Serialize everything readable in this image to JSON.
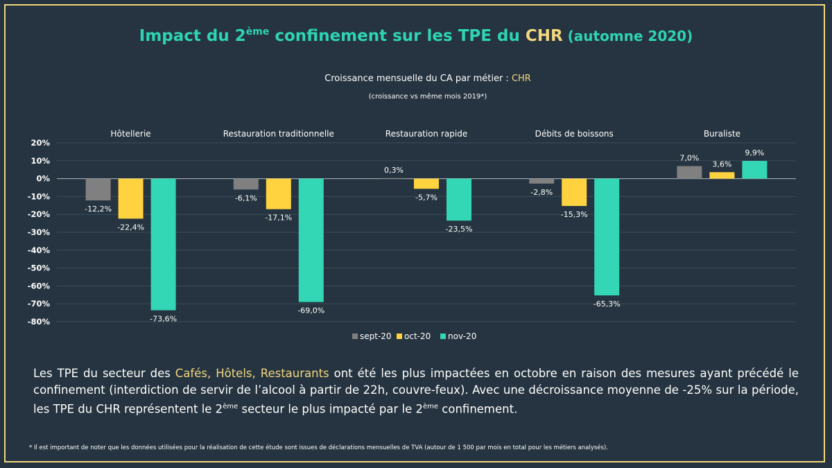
{
  "header": {
    "title_part1": "Impact du 2",
    "title_sup": "ème",
    "title_part2": " confinement sur les TPE du ",
    "title_highlight": "CHR",
    "title_part3": " (automne 2020)"
  },
  "colors": {
    "background": "#253440",
    "accent_teal": "#2fd4b4",
    "accent_yellow": "#f2d77e",
    "sept-20": "#808080",
    "oct-20": "#ffd23f",
    "nov-20": "#33d6b5"
  },
  "chart_data": {
    "type": "bar",
    "title": "Croissance mensuelle du CA par métier : CHR",
    "subtitle": "(croissance vs même mois 2019*)",
    "categories": [
      "Hôtellerie",
      "Restauration traditionnelle",
      "Restauration rapide",
      "Débits de boissons",
      "Buraliste"
    ],
    "series": [
      {
        "name": "sept-20",
        "values": [
          -12.2,
          -6.1,
          0.3,
          -2.8,
          7.0
        ],
        "labels": [
          "-12,2%",
          "-6,1%",
          "0,3%",
          "-2,8%",
          "7,0%"
        ]
      },
      {
        "name": "oct-20",
        "values": [
          -22.4,
          -17.1,
          -5.7,
          -15.3,
          3.6
        ],
        "labels": [
          "-22,4%",
          "-17,1%",
          "-5,7%",
          "-15,3%",
          "3,6%"
        ]
      },
      {
        "name": "nov-20",
        "values": [
          -73.6,
          -69.0,
          -23.5,
          -65.3,
          9.9
        ],
        "labels": [
          "-73,6%",
          "-69,0%",
          "-23,5%",
          "-65,3%",
          "9,9%"
        ]
      }
    ],
    "yticks": [
      "20%",
      "10%",
      "0%",
      "-10%",
      "-20%",
      "-30%",
      "-40%",
      "-50%",
      "-60%",
      "-70%",
      "-80%"
    ],
    "ylim": [
      -80,
      20
    ],
    "grid": true,
    "legend": "bottom"
  },
  "chart_header": {
    "subtitle_main": "Croissance mensuelle du CA par métier : ",
    "subtitle_highlight": "CHR",
    "subnote": "(croissance vs même mois 2019*)"
  },
  "body": {
    "p1": "Les TPE du secteur des ",
    "p1_highlight": "Cafés, Hôtels, Restaurants",
    "p2": " ont été les plus impactées en octobre en raison des mesures ayant précédé le confinement (interdiction de servir de l’alcool à partir de 22h, couvre-feux). Avec une décroissance moyenne de -25% sur la période, les TPE du CHR représentent le 2",
    "sup1": "ème",
    "p3": " secteur le plus impacté par le 2",
    "sup2": "ème",
    "p4": " confinement."
  },
  "footnote": "* Il est important de noter que les données utilisées pour la réalisation de cette étude sont issues de déclarations mensuelles de TVA (autour de 1 500 par mois en total pour les métiers analysés)."
}
